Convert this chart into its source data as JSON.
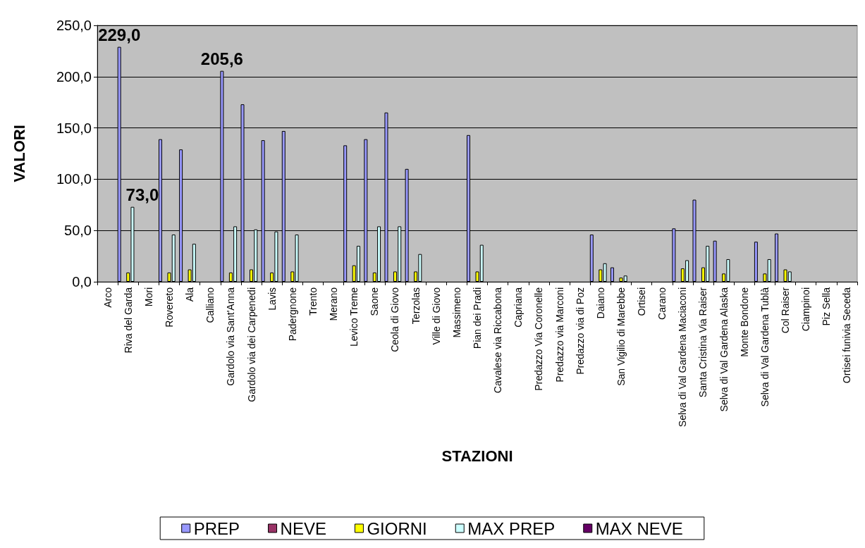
{
  "chart_data": {
    "type": "bar",
    "xlabel": "STAZIONI",
    "ylabel": "VALORI",
    "categories": [
      "Arco",
      "Riva del Garda",
      "Mori",
      "Rovereto",
      "Ala",
      "Calliano",
      "Gardolo via Sant'Anna",
      "Gardolo via dei Carpenedi",
      "Lavis",
      "Padergnone",
      "Trento",
      "Merano",
      "Levico Treme",
      "Saone",
      "Ceola di Giovo",
      "Terzolas",
      "Ville di Giovo",
      "Massimeno",
      "Pian dei Pradi",
      "Cavalese via Riccabona",
      "Capriana",
      "Predazzo Via Coronelle",
      "Predazzo via Marconi",
      "Predazzo via di Poz",
      "Daiano",
      "San Vigilio di Marebbe",
      "Ortisei",
      "Carano",
      "Selva di Val Gardena Maciaconi",
      "Santa Cristina Via Raiser",
      "Selva di Val Gardena Alaska",
      "Monte Bondone",
      "Selva di Val Gardena Tublà",
      "Col Raiser",
      "Ciampinoi",
      "Piz Sella",
      "Ortisei funivia Seceda"
    ],
    "series": [
      {
        "name": "PREP",
        "color": "#9999ff",
        "values": [
          null,
          229,
          null,
          139,
          129,
          null,
          205.6,
          173,
          138,
          147,
          null,
          null,
          133,
          139,
          165,
          110,
          null,
          null,
          143,
          null,
          null,
          null,
          null,
          null,
          46,
          14,
          null,
          null,
          52,
          80,
          40,
          null,
          39,
          47,
          null,
          null,
          null
        ],
        "value_labels": [
          null,
          "229,0",
          null,
          null,
          null,
          null,
          "205,6",
          null,
          null,
          null,
          null,
          null,
          null,
          null,
          null,
          null,
          null,
          null,
          null,
          null,
          null,
          null,
          null,
          null,
          null,
          null,
          null,
          null,
          null,
          null,
          null,
          null,
          null,
          null,
          null,
          null,
          null
        ]
      },
      {
        "name": "NEVE",
        "color": "#993366",
        "values": [
          null,
          null,
          null,
          null,
          null,
          null,
          null,
          null,
          null,
          null,
          null,
          null,
          null,
          null,
          null,
          null,
          null,
          null,
          null,
          null,
          null,
          null,
          null,
          null,
          null,
          null,
          null,
          null,
          null,
          null,
          null,
          null,
          null,
          null,
          null,
          null,
          null
        ]
      },
      {
        "name": "GIORNI",
        "color": "#ffff00",
        "values": [
          null,
          9,
          null,
          9,
          12,
          null,
          9,
          12,
          9,
          10,
          null,
          null,
          16,
          9,
          10,
          10,
          null,
          null,
          10,
          null,
          null,
          null,
          null,
          null,
          12,
          4,
          null,
          null,
          13,
          14,
          8,
          null,
          8,
          12,
          null,
          null,
          null
        ]
      },
      {
        "name": "MAX PREP",
        "color": "#ccffff",
        "values": [
          null,
          73,
          null,
          46,
          37,
          null,
          54,
          51,
          49,
          46,
          null,
          null,
          35,
          54,
          54,
          27,
          null,
          null,
          36,
          null,
          null,
          null,
          null,
          null,
          18,
          6,
          null,
          null,
          21,
          35,
          22,
          null,
          22,
          10,
          null,
          null,
          null
        ],
        "value_labels": [
          null,
          "73,0",
          null,
          null,
          null,
          null,
          null,
          null,
          null,
          null,
          null,
          null,
          null,
          null,
          null,
          null,
          null,
          null,
          null,
          null,
          null,
          null,
          null,
          null,
          null,
          null,
          null,
          null,
          null,
          null,
          null,
          null,
          null,
          null,
          null,
          null,
          null
        ]
      },
      {
        "name": "MAX NEVE",
        "color": "#660066",
        "values": [
          null,
          null,
          null,
          null,
          null,
          null,
          null,
          null,
          null,
          null,
          null,
          null,
          null,
          null,
          null,
          null,
          null,
          null,
          null,
          null,
          null,
          null,
          null,
          null,
          null,
          null,
          null,
          null,
          null,
          null,
          null,
          null,
          null,
          null,
          null,
          null,
          null
        ]
      }
    ],
    "ylim": [
      0,
      250
    ],
    "yticks": [
      {
        "value": 0,
        "label": "0,0"
      },
      {
        "value": 50,
        "label": "50,0"
      },
      {
        "value": 100,
        "label": "100,0"
      },
      {
        "value": 150,
        "label": "150,0"
      },
      {
        "value": 200,
        "label": "200,0"
      },
      {
        "value": 250,
        "label": "250,0"
      }
    ],
    "grid": "y",
    "legend": "bottom"
  }
}
